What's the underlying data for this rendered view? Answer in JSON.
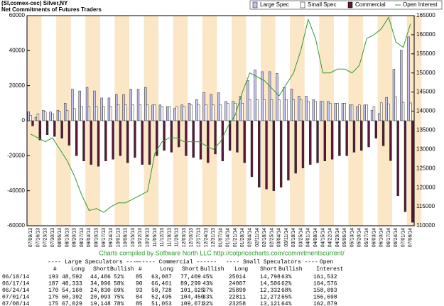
{
  "chart_data": {
    "type": "bar",
    "title": "(SI,comex-cec) Silver,NY",
    "subtitle": "Net Commitments of Futures Traders",
    "footer": "Charts compiled by Software North LLC  http://cotpricecharts.com/commitmentscurrent/",
    "legend": "top-right",
    "categories": [
      "07/09/13",
      "07/16/13",
      "07/23/13",
      "07/30/13",
      "08/06/13",
      "08/13/13",
      "08/20/13",
      "08/27/13",
      "09/03/13",
      "09/10/13",
      "09/17/13",
      "09/24/13",
      "10/01/13",
      "10/08/13",
      "10/15/13",
      "10/22/13",
      "10/29/13",
      "11/05/13",
      "11/12/13",
      "11/19/13",
      "11/26/13",
      "12/03/13",
      "12/10/13",
      "12/17/13",
      "12/24/13",
      "12/31/13",
      "01/07/14",
      "01/14/14",
      "01/21/14",
      "01/28/14",
      "02/04/14",
      "02/11/14",
      "02/18/14",
      "02/25/14",
      "03/04/14",
      "03/11/14",
      "03/18/14",
      "03/25/14",
      "04/01/14",
      "04/08/14",
      "04/15/14",
      "04/22/14",
      "04/29/14",
      "05/06/14",
      "05/13/14",
      "05/20/14",
      "05/27/14",
      "06/03/14",
      "06/10/14",
      "06/17/14",
      "06/24/14",
      "07/01/14",
      "07/08/14"
    ],
    "series": [
      {
        "name": "Large Spec",
        "color": "#c4c4ee",
        "values": [
          5000,
          2000,
          6000,
          5000,
          6000,
          10000,
          18000,
          17000,
          19000,
          17000,
          13000,
          13000,
          15000,
          15000,
          18000,
          18000,
          19000,
          9000,
          9000,
          8000,
          7000,
          9000,
          10000,
          12000,
          16000,
          15000,
          16000,
          11000,
          11000,
          14000,
          23000,
          29000,
          28000,
          28000,
          27000,
          19000,
          18000,
          14000,
          14000,
          12000,
          11000,
          11000,
          10000,
          10000,
          9000,
          8000,
          9000,
          6000,
          4106,
          13337,
          29330,
          40299,
          47881
        ]
      },
      {
        "name": "Small Spec",
        "color": "#ffffff",
        "values": [
          3000,
          4000,
          5000,
          4000,
          5000,
          6000,
          7000,
          8000,
          8000,
          8000,
          8000,
          8000,
          9000,
          9000,
          9000,
          9000,
          9000,
          9000,
          8000,
          8000,
          8000,
          8000,
          9000,
          9000,
          9000,
          9000,
          9000,
          10000,
          10000,
          10000,
          12000,
          12000,
          12000,
          12000,
          12000,
          12000,
          12000,
          12000,
          11000,
          11000,
          11000,
          10000,
          10000,
          10000,
          9000,
          9000,
          9000,
          8000,
          10216,
          9501,
          13567,
          10539,
          10137
        ]
      },
      {
        "name": "Commercial",
        "color": "#5a1838",
        "values": [
          -3000,
          -11000,
          -8000,
          -9000,
          -10000,
          -14000,
          -20000,
          -23000,
          -25000,
          -26000,
          -23000,
          -22000,
          -20000,
          -24000,
          -21000,
          -25000,
          -25000,
          -20000,
          -17000,
          -18000,
          -15000,
          -20000,
          -21000,
          -22000,
          -24000,
          -19000,
          -23000,
          -17000,
          -18000,
          -24000,
          -32000,
          -38000,
          -39000,
          -40000,
          -38000,
          -34000,
          -30000,
          -27000,
          -25000,
          -24000,
          -23000,
          -22000,
          -20000,
          -20000,
          -18000,
          -17000,
          -15000,
          -10000,
          -14322,
          -22838,
          -42897,
          -51955,
          -58018
        ]
      },
      {
        "name": "Open Interest",
        "color": "#2e9a2e",
        "type": "line",
        "axis": "y2",
        "values": [
          134000,
          133000,
          132000,
          133000,
          130000,
          127000,
          123000,
          118000,
          114000,
          114500,
          113500,
          115000,
          116000,
          116000,
          117000,
          118000,
          119000,
          129000,
          132000,
          133000,
          133000,
          132000,
          132000,
          132000,
          131000,
          130000,
          132000,
          136000,
          139000,
          145000,
          150000,
          149000,
          148000,
          146000,
          144000,
          147000,
          150000,
          156000,
          164000,
          159000,
          150000,
          150000,
          151000,
          151000,
          150000,
          152000,
          159000,
          160000,
          161532,
          164576,
          158093,
          156698,
          162879
        ]
      }
    ],
    "ylim": [
      -60000,
      60000
    ],
    "yticks": [
      -60000,
      -40000,
      -20000,
      0,
      20000,
      40000,
      60000
    ],
    "y2lim": [
      110000,
      165000
    ],
    "y2ticks": [
      110000,
      115000,
      120000,
      125000,
      130000,
      135000,
      140000,
      145000,
      150000,
      155000,
      160000,
      165000
    ],
    "table": {
      "groups": [
        "---- Large Speculators ----",
        "------ Commercial ------",
        "---- Small Speculators ----",
        "Open"
      ],
      "header": [
        "#",
        "Long",
        "Short",
        "Bullish",
        "#",
        "Long",
        "Short",
        "Bullish",
        "Long",
        "Short",
        "Bullish",
        "Interest"
      ],
      "rows": [
        [
          "06/10/14",
          "193",
          "48,592",
          "44,486",
          "52%",
          "85",
          "63,087",
          "77,409",
          "45%",
          "25014",
          "14,798",
          "63%",
          "161,532"
        ],
        [
          "06/17/14",
          "187",
          "48,333",
          "34,996",
          "58%",
          "90",
          "66,461",
          "89,299",
          "43%",
          "24007",
          "14,506",
          "62%",
          "164,576"
        ],
        [
          "06/24/14",
          "170",
          "54,160",
          "24,830",
          "69%",
          "93",
          "58,728",
          "101,625",
          "37%",
          "25899",
          "12,332",
          "68%",
          "158,093"
        ],
        [
          "07/01/14",
          "175",
          "60,392",
          "20,093",
          "75%",
          "84",
          "52,495",
          "104,450",
          "33%",
          "22811",
          "12,272",
          "65%",
          "156,698"
        ],
        [
          "07/08/14",
          "175",
          "67,029",
          "19,148",
          "78%",
          "85",
          "51,053",
          "109,071",
          "32%",
          "23258",
          "13,121",
          "64%",
          "162,879"
        ]
      ]
    }
  }
}
